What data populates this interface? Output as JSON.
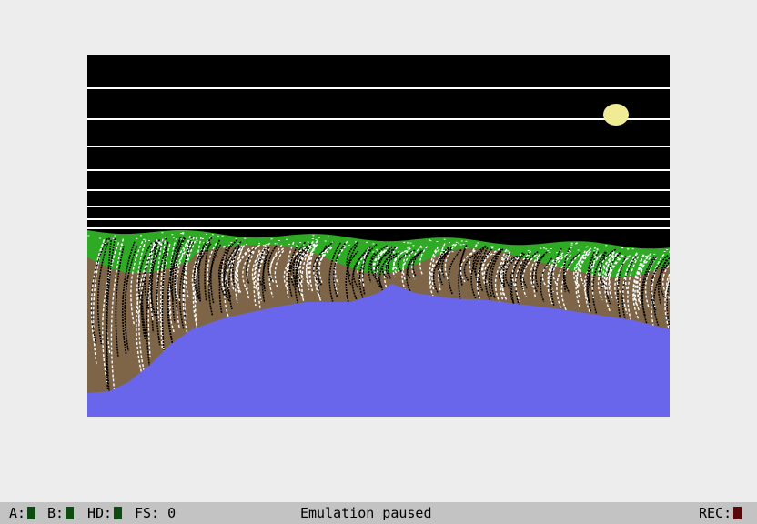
{
  "emulator": {
    "screen": {
      "colors": {
        "sky": "#000000",
        "sky_lines": "#ffffff",
        "moon": "#f0ec96",
        "grass": "#2eaa25",
        "cliff": "#7e6548",
        "water": "#6a66ec",
        "strand_light": "#ffffff",
        "strand_dark": "#000000"
      }
    },
    "statusbar": {
      "drive_a_label": "A:",
      "drive_b_label": "B:",
      "hd_label": "HD:",
      "fs_label": "FS:",
      "fs_value": "0",
      "message": "Emulation paused",
      "rec_label": "REC:",
      "led_color": "#0e4a12",
      "rec_led_color": "#5a0a0a"
    }
  }
}
